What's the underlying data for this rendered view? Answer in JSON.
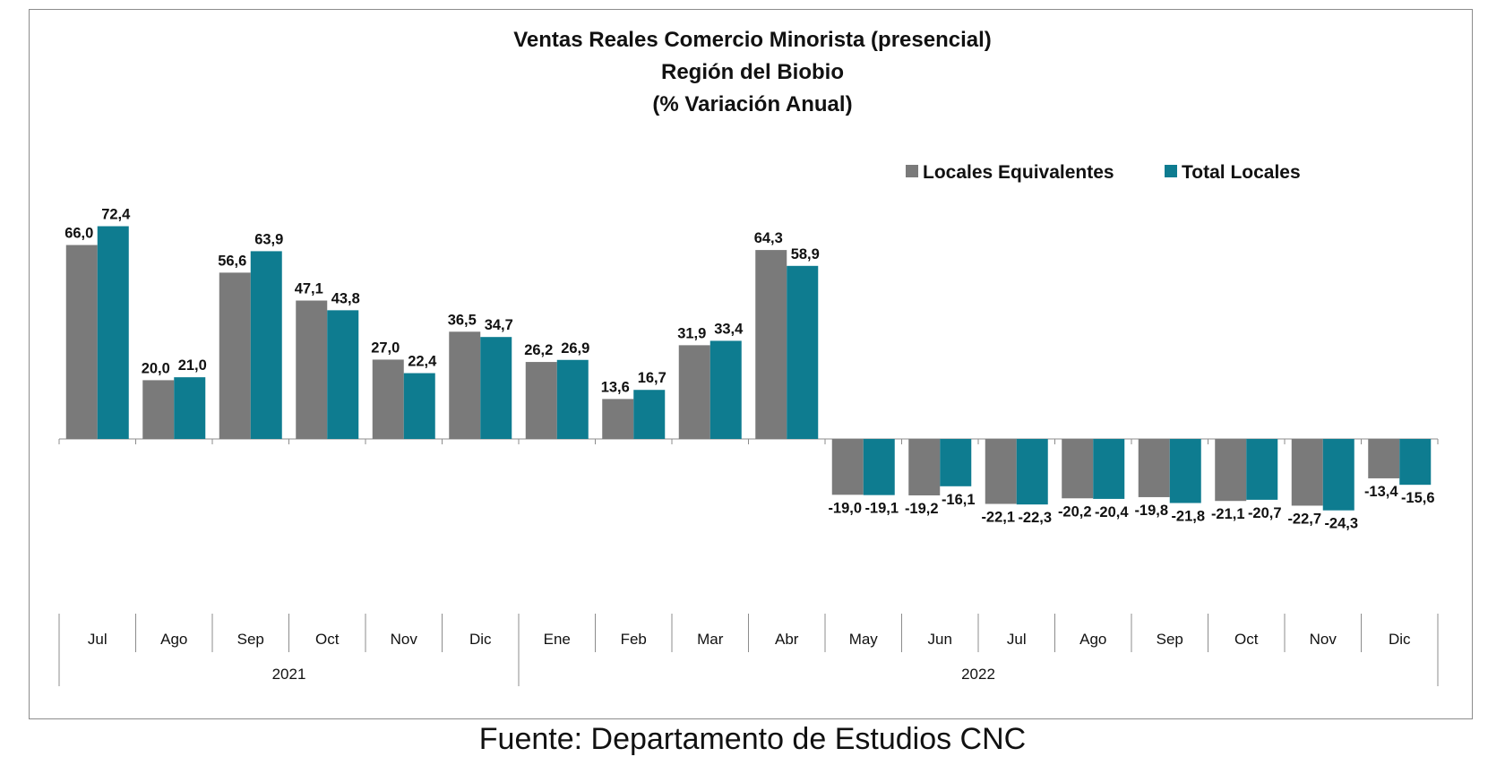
{
  "chart_data": {
    "type": "bar",
    "title_lines": [
      "Ventas Reales Comercio Minorista (presencial)",
      "Región del Biobio",
      "(% Variación Anual)"
    ],
    "categories": [
      "Jul",
      "Ago",
      "Sep",
      "Oct",
      "Nov",
      "Dic",
      "Ene",
      "Feb",
      "Mar",
      "Abr",
      "May",
      "Jun",
      "Jul",
      "Ago",
      "Sep",
      "Oct",
      "Nov",
      "Dic"
    ],
    "groups": [
      {
        "label": "2021",
        "count": 6
      },
      {
        "label": "2022",
        "count": 12
      }
    ],
    "series": [
      {
        "name": "Locales Equivalentes",
        "color": "#7a7a7a",
        "values": [
          66.0,
          20.0,
          56.6,
          47.1,
          27.0,
          36.5,
          26.2,
          13.6,
          31.9,
          64.3,
          -19.0,
          -19.2,
          -22.1,
          -20.2,
          -19.8,
          -21.1,
          -22.7,
          -13.4
        ],
        "labels": [
          "66,0",
          "20,0",
          "56,6",
          "47,1",
          "27,0",
          "36,5",
          "26,2",
          "13,6",
          "31,9",
          "64,3",
          "-19,0",
          "-19,2",
          "-22,1",
          "-20,2",
          "-19,8",
          "-21,1",
          "-22,7",
          "-13,4"
        ]
      },
      {
        "name": "Total Locales",
        "color": "#0e7c90",
        "values": [
          72.4,
          21.0,
          63.9,
          43.8,
          22.4,
          34.7,
          26.9,
          16.7,
          33.4,
          58.9,
          -19.1,
          -16.1,
          -22.3,
          -20.4,
          -21.8,
          -20.7,
          -24.3,
          -15.6
        ],
        "labels": [
          "72,4",
          "21,0",
          "63,9",
          "43,8",
          "22,4",
          "34,7",
          "26,9",
          "16,7",
          "33,4",
          "58,9",
          "-19,1",
          "-16,1",
          "-22,3",
          "-20,4",
          "-21,8",
          "-20,7",
          "-24,3",
          "-15,6"
        ]
      }
    ],
    "legend_position": "top-right",
    "grid": false
  },
  "source_text": "Fuente: Departamento de Estudios CNC"
}
